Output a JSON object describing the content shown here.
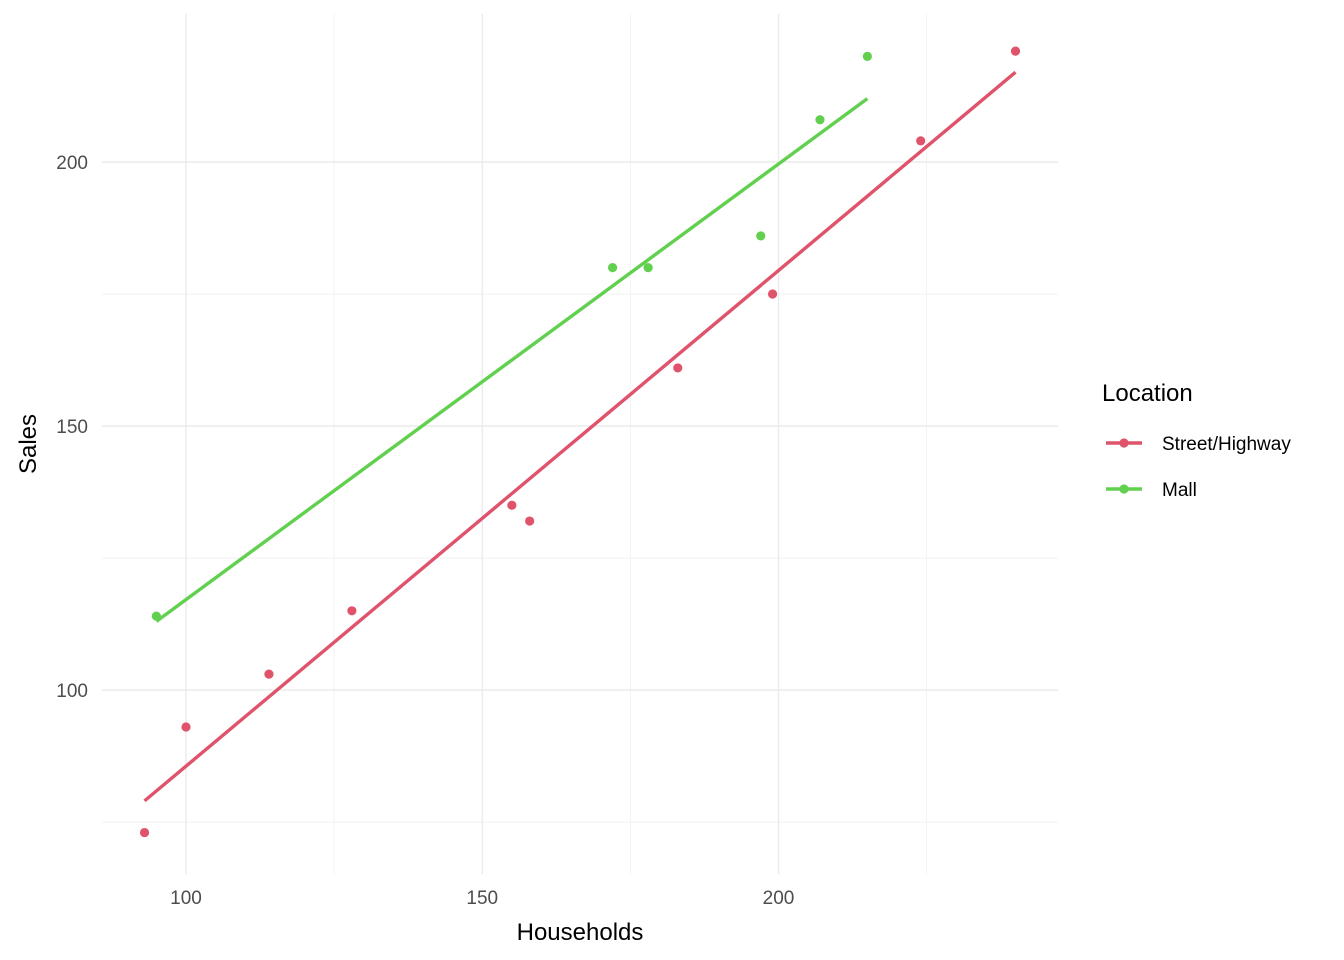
{
  "chart_data": {
    "type": "scatter",
    "title": "",
    "xlabel": "Households",
    "ylabel": "Sales",
    "xlim": [
      86,
      248
    ],
    "ylim": [
      75,
      223
    ],
    "x_ticks": [
      100,
      150,
      200
    ],
    "y_ticks": [
      100,
      150,
      200
    ],
    "grid": true,
    "legend": {
      "title": "Location",
      "placement": "right"
    },
    "series": [
      {
        "name": "Street/Highway",
        "color": "#DF536B",
        "points": [
          {
            "x": 93,
            "y": 73
          },
          {
            "x": 100,
            "y": 93
          },
          {
            "x": 114,
            "y": 103
          },
          {
            "x": 128,
            "y": 115
          },
          {
            "x": 155,
            "y": 135
          },
          {
            "x": 158,
            "y": 132
          },
          {
            "x": 183,
            "y": 161
          },
          {
            "x": 199,
            "y": 175
          },
          {
            "x": 224,
            "y": 204
          },
          {
            "x": 240,
            "y": 221
          }
        ],
        "fit": {
          "x": [
            93,
            240
          ],
          "y": [
            79,
            217
          ]
        }
      },
      {
        "name": "Mall",
        "color": "#61D04F",
        "points": [
          {
            "x": 95,
            "y": 114
          },
          {
            "x": 172,
            "y": 180
          },
          {
            "x": 178,
            "y": 180
          },
          {
            "x": 197,
            "y": 186
          },
          {
            "x": 207,
            "y": 208
          },
          {
            "x": 215,
            "y": 220
          }
        ],
        "fit": {
          "x": [
            95,
            215
          ],
          "y": [
            113,
            212
          ]
        }
      }
    ]
  }
}
